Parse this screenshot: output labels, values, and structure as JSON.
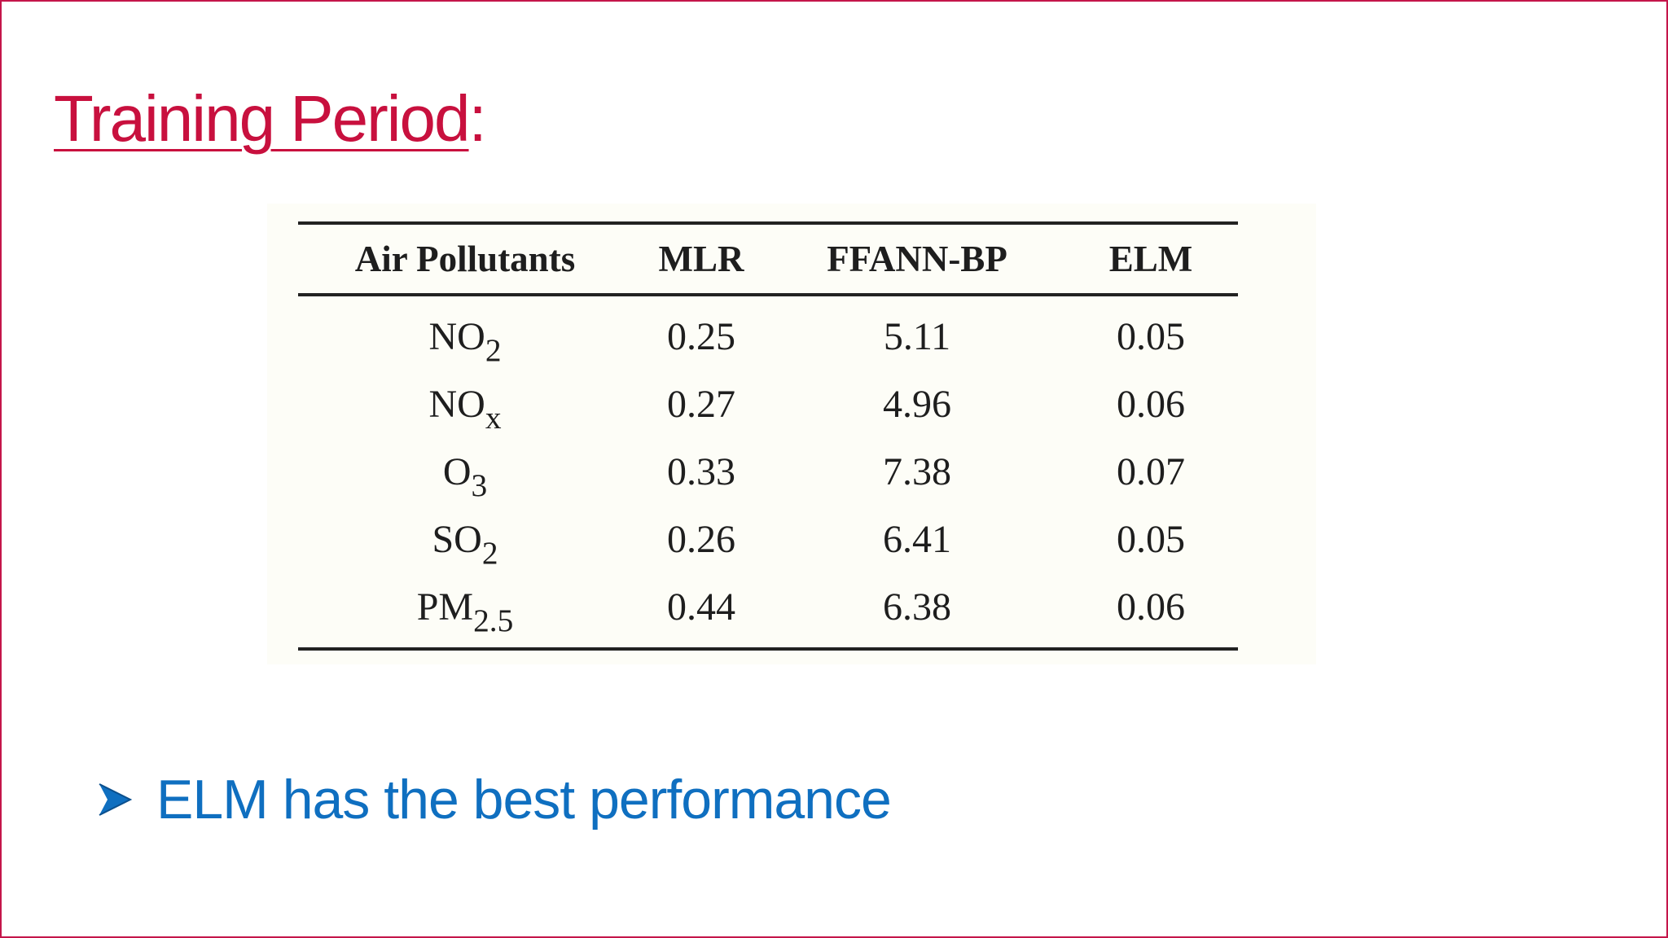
{
  "slide": {
    "title": "Training Period",
    "title_suffix": ":",
    "bullet": "ELM has the best performance",
    "colors": {
      "title": "#c8103e",
      "bullet": "#0f6fc0",
      "border": "#c4154a"
    }
  },
  "table": {
    "headers": [
      "Air Pollutants",
      "MLR",
      "FFANN-BP",
      "ELM"
    ],
    "rows": [
      {
        "base": "NO",
        "sub": "2",
        "values": [
          "0.25",
          "5.11",
          "0.05"
        ]
      },
      {
        "base": "NO",
        "sub": "x",
        "values": [
          "0.27",
          "4.96",
          "0.06"
        ]
      },
      {
        "base": "O",
        "sub": "3",
        "values": [
          "0.33",
          "7.38",
          "0.07"
        ]
      },
      {
        "base": "SO",
        "sub": "2",
        "values": [
          "0.26",
          "6.41",
          "0.05"
        ]
      },
      {
        "base": "PM",
        "sub": "2.5",
        "values": [
          "0.44",
          "6.38",
          "0.06"
        ]
      }
    ]
  },
  "icons": {
    "bullet": "arrowhead-bullet-icon"
  }
}
